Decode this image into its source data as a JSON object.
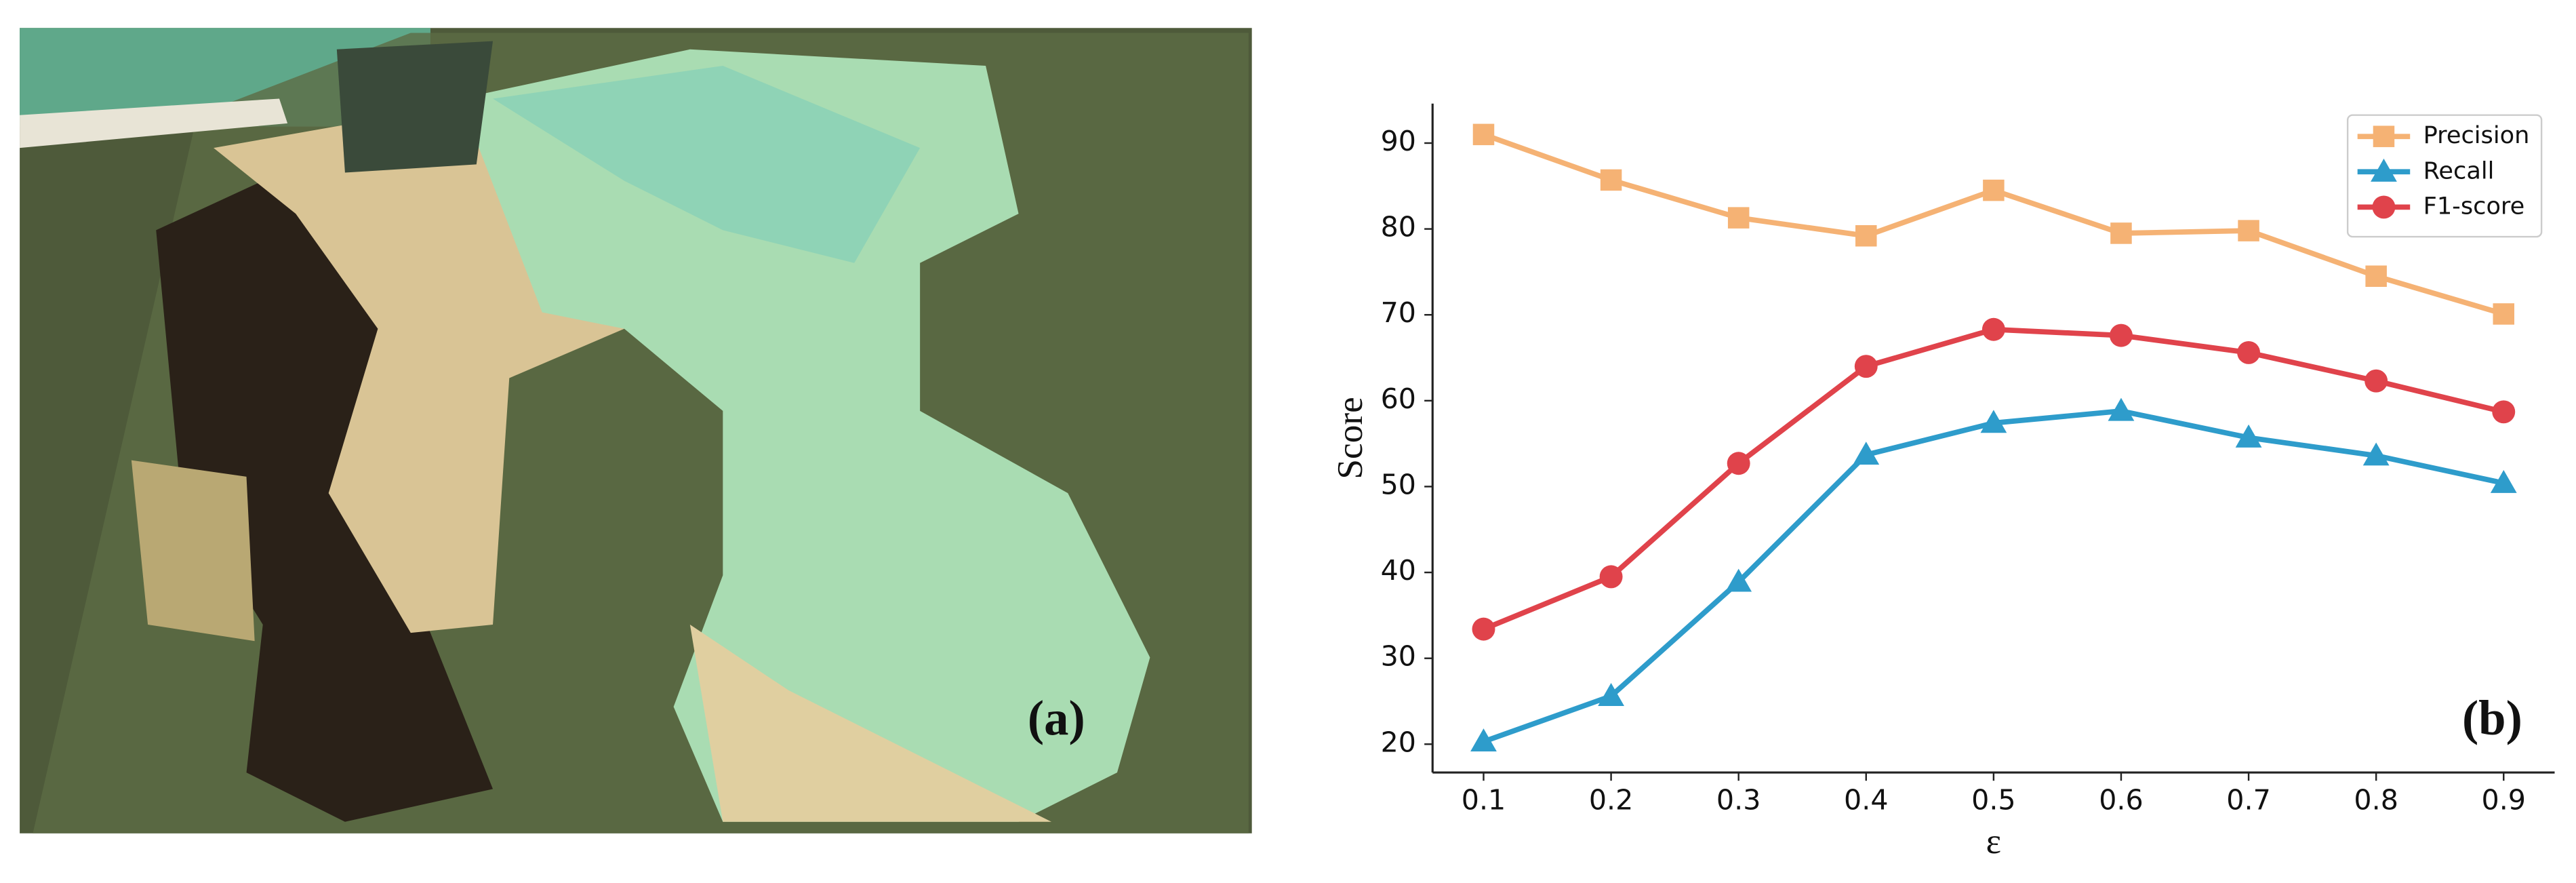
{
  "panel_a": {
    "label": "(a)"
  },
  "chart_data": {
    "type": "line",
    "panel_label": "(b)",
    "xlabel": "ε",
    "ylabel": "Score",
    "x": [
      0.1,
      0.2,
      0.3,
      0.4,
      0.5,
      0.6,
      0.7,
      0.8,
      0.9
    ],
    "series": [
      {
        "name": "Precision",
        "color": "#f5b274",
        "marker": "square",
        "values": [
          91.0,
          85.7,
          81.3,
          79.2,
          84.5,
          79.5,
          79.8,
          74.5,
          70.1
        ]
      },
      {
        "name": "Recall",
        "color": "#2e9ccb",
        "marker": "triangle",
        "values": [
          20.3,
          25.6,
          38.9,
          53.7,
          57.4,
          58.8,
          55.7,
          53.6,
          50.4
        ]
      },
      {
        "name": "F1-score",
        "color": "#e0434b",
        "marker": "circle",
        "values": [
          33.4,
          39.5,
          52.7,
          64.0,
          68.3,
          67.6,
          65.6,
          62.3,
          58.7
        ]
      }
    ],
    "xlim": [
      0.06,
      0.94
    ],
    "ylim": [
      16.7,
      94.6
    ],
    "xticks": [
      0.1,
      0.2,
      0.3,
      0.4,
      0.5,
      0.6,
      0.7,
      0.8,
      0.9
    ],
    "yticks": [
      20,
      30,
      40,
      50,
      60,
      70,
      80,
      90
    ],
    "grid": false,
    "legend": "upper right"
  }
}
